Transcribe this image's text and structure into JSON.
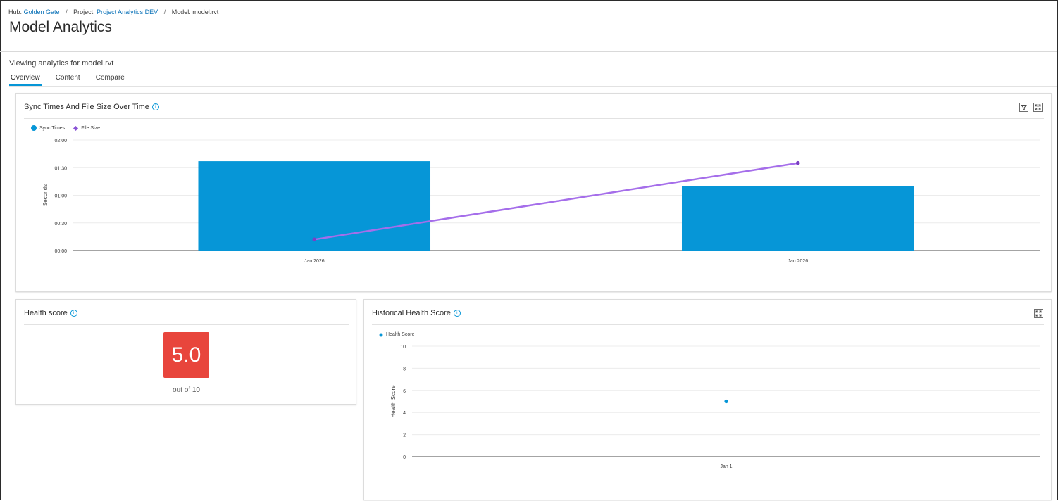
{
  "breadcrumb": {
    "hub_label": "Hub:",
    "hub_value": "Golden Gate",
    "project_label": "Project:",
    "project_value": "Project Analytics DEV",
    "model_label": "Model:",
    "model_value": "model.rvt",
    "separator": "/"
  },
  "page": {
    "title": "Model Analytics",
    "viewing": "Viewing analytics for model.rvt"
  },
  "tabs": [
    {
      "label": "Overview",
      "active": true
    },
    {
      "label": "Content",
      "active": false
    },
    {
      "label": "Compare",
      "active": false
    }
  ],
  "sync_card": {
    "title": "Sync Times And File Size Over Time",
    "icons": [
      "filter-icon",
      "expand-icon"
    ]
  },
  "health_card": {
    "title": "Health score",
    "score": "5.0",
    "subtitle": "out of 10"
  },
  "history_card": {
    "title": "Historical Health Score",
    "icons": [
      "expand-icon"
    ]
  },
  "colors": {
    "bar": "#0696d7",
    "line": "#a56eea",
    "line_point": "#7b3fc4",
    "health_badge": "#e8453c",
    "accent": "#0696d7"
  },
  "chart_data": [
    {
      "type": "bar",
      "ylabel": "Seconds",
      "y_ticks": [
        "00:00",
        "00:30",
        "01:00",
        "01:30",
        "02:00"
      ],
      "ylim": [
        0,
        120
      ],
      "categories": [
        "Jan 2026",
        "Jan 2026"
      ],
      "legend_position": "top-left",
      "grid": true,
      "series": [
        {
          "name": "Sync Times",
          "type": "bar",
          "values": [
            97,
            70
          ]
        },
        {
          "name": "File Size",
          "type": "line",
          "values": [
            12,
            95
          ]
        }
      ]
    },
    {
      "type": "scatter",
      "ylabel": "Health Score",
      "y_ticks": [
        "0",
        "2",
        "4",
        "6",
        "8",
        "10"
      ],
      "ylim": [
        0,
        10
      ],
      "categories": [
        "Jan 1"
      ],
      "legend_position": "top-left",
      "grid": true,
      "series": [
        {
          "name": "Health Score",
          "values": [
            5
          ]
        }
      ]
    }
  ]
}
